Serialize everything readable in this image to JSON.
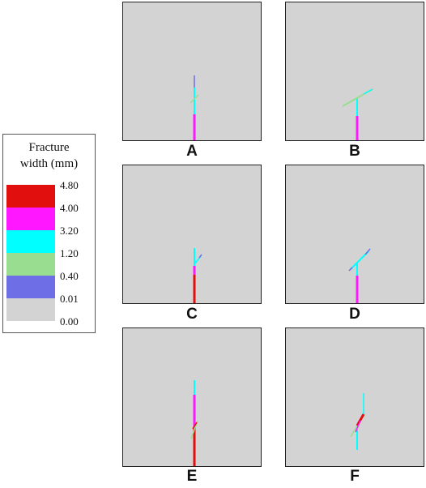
{
  "legend": {
    "title_line1": "Fracture",
    "title_line2": "width (mm)",
    "ticks": [
      "4.80",
      "4.00",
      "3.20",
      "1.20",
      "0.40",
      "0.01",
      "0.00"
    ],
    "colors": [
      "#e20f0f",
      "#ff17ff",
      "#00ffff",
      "#99dd91",
      "#6e6ee6",
      "#d3d3d3"
    ]
  },
  "panels": [
    {
      "label": "A"
    },
    {
      "label": "B"
    },
    {
      "label": "C"
    },
    {
      "label": "D"
    },
    {
      "label": "E"
    },
    {
      "label": "F"
    }
  ]
}
